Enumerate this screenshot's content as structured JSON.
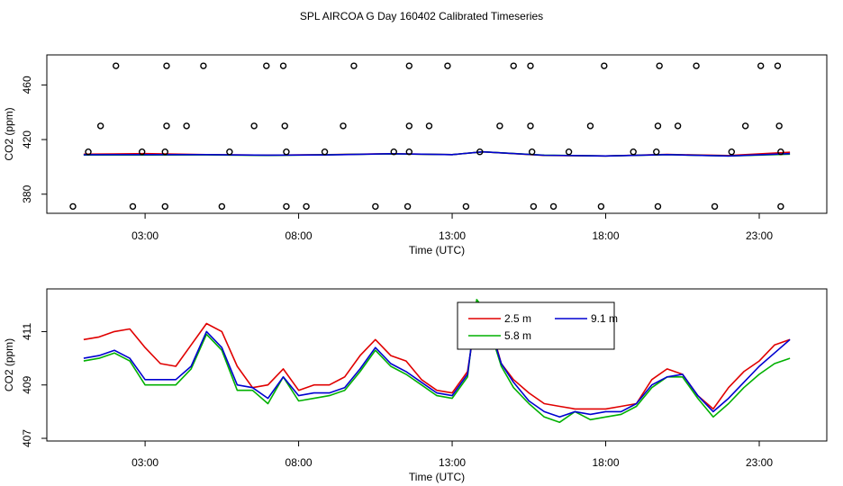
{
  "figure_title": "SPL AIRCOA G  Day 160402  Calibrated Timeseries",
  "chart_data": [
    {
      "type": "scatter+line",
      "title": "",
      "xlabel": "Time (UTC)",
      "ylabel": "CO2 (ppm)",
      "xlim": [
        -0.2,
        25.2
      ],
      "ylim": [
        366,
        482
      ],
      "xticks": [
        3,
        8,
        13,
        18,
        23
      ],
      "xtick_labels": [
        "03:00",
        "08:00",
        "13:00",
        "18:00",
        "23:00"
      ],
      "yticks": [
        380,
        420,
        460
      ],
      "ytick_labels": [
        "380",
        "420",
        "460"
      ],
      "grid": false,
      "series": [
        {
          "name": "2.5 m",
          "color": "#e00000",
          "x": [
            1,
            3,
            5,
            7,
            9,
            11,
            13,
            14,
            16,
            18,
            20,
            22,
            24
          ],
          "y": [
            409.3,
            409.7,
            409.0,
            408.6,
            409.0,
            409.6,
            409.0,
            411.0,
            408.4,
            408.0,
            409.1,
            408.3,
            410.7
          ]
        },
        {
          "name": "5.8 m",
          "color": "#00b000",
          "x": [
            1,
            3,
            5,
            7,
            9,
            11,
            13,
            14,
            16,
            18,
            20,
            22,
            24
          ],
          "y": [
            408.7,
            408.7,
            408.8,
            408.4,
            408.9,
            409.5,
            409.0,
            411.0,
            408.6,
            408.0,
            409.0,
            408.0,
            409.3
          ]
        },
        {
          "name": "9.1 m",
          "color": "#0000d0",
          "x": [
            1,
            3,
            5,
            7,
            9,
            11,
            13,
            14,
            16,
            18,
            20,
            22,
            24
          ],
          "y": [
            408.9,
            409.0,
            409.0,
            408.6,
            408.8,
            409.6,
            409.0,
            411.0,
            408.5,
            408.0,
            409.0,
            408.0,
            409.7
          ]
        }
      ],
      "markers": {
        "symbol": "open circle",
        "levels": [
          {
            "y": 474,
            "x": [
              2.05,
              3.7,
              4.9,
              6.95,
              7.5,
              9.8,
              11.6,
              12.85,
              15.0,
              15.55,
              17.95,
              19.75,
              20.95,
              23.05,
              23.6
            ]
          },
          {
            "y": 430,
            "x": [
              1.55,
              3.7,
              4.35,
              6.55,
              7.55,
              9.45,
              11.6,
              12.25,
              14.55,
              15.55,
              17.5,
              19.7,
              20.35,
              22.55,
              23.65
            ]
          },
          {
            "y": 411,
            "x": [
              1.15,
              2.9,
              3.65,
              5.75,
              7.6,
              8.85,
              11.1,
              11.6,
              13.9,
              15.6,
              16.8,
              18.9,
              19.65,
              22.1,
              23.7
            ]
          },
          {
            "y": 371,
            "x": [
              0.65,
              2.6,
              3.65,
              5.5,
              7.6,
              8.25,
              10.5,
              11.55,
              13.45,
              15.65,
              16.3,
              17.85,
              19.7,
              21.55,
              23.7
            ]
          }
        ]
      }
    },
    {
      "type": "line",
      "title": "",
      "xlabel": "Time (UTC)",
      "ylabel": "CO2 (ppm)",
      "xlim": [
        -0.2,
        25.2
      ],
      "ylim": [
        406.9,
        412.6
      ],
      "xticks": [
        3,
        8,
        13,
        18,
        23
      ],
      "xtick_labels": [
        "03:00",
        "08:00",
        "13:00",
        "18:00",
        "23:00"
      ],
      "yticks": [
        407,
        409,
        411
      ],
      "ytick_labels": [
        "407",
        "409",
        "411"
      ],
      "grid": false,
      "legend": {
        "position": "top-center",
        "entries": [
          "2.5 m",
          "9.1 m",
          "5.8 m"
        ]
      },
      "series": [
        {
          "name": "2.5 m",
          "color": "#e00000",
          "x": [
            1.0,
            1.5,
            2.0,
            2.5,
            3.0,
            3.5,
            4.0,
            4.5,
            5.0,
            5.5,
            6.0,
            6.5,
            7.0,
            7.5,
            8.0,
            8.5,
            9.0,
            9.5,
            10.0,
            10.5,
            11.0,
            11.5,
            12.0,
            12.5,
            13.0,
            13.5,
            13.8,
            14.0,
            14.3,
            14.6,
            15.0,
            15.5,
            16.0,
            16.5,
            17.0,
            17.5,
            18.0,
            18.5,
            19.0,
            19.5,
            20.0,
            20.5,
            21.0,
            21.5,
            22.0,
            22.5,
            23.0,
            23.5,
            24.0
          ],
          "y": [
            410.7,
            410.8,
            411.0,
            411.1,
            410.4,
            409.8,
            409.7,
            410.5,
            411.3,
            411.0,
            409.7,
            408.9,
            409.0,
            409.6,
            408.8,
            409.0,
            409.0,
            409.3,
            410.1,
            410.7,
            410.1,
            409.9,
            409.2,
            408.8,
            408.7,
            409.5,
            411.7,
            411.9,
            411.0,
            409.8,
            409.2,
            408.7,
            408.3,
            408.2,
            408.1,
            408.1,
            408.1,
            408.2,
            408.3,
            409.2,
            409.6,
            409.4,
            408.6,
            408.1,
            408.9,
            409.5,
            409.9,
            410.5,
            410.7
          ]
        },
        {
          "name": "5.8 m",
          "color": "#00b000",
          "x": [
            1.0,
            1.5,
            2.0,
            2.5,
            3.0,
            3.5,
            4.0,
            4.5,
            5.0,
            5.5,
            6.0,
            6.5,
            7.0,
            7.5,
            8.0,
            8.5,
            9.0,
            9.5,
            10.0,
            10.5,
            11.0,
            11.5,
            12.0,
            12.5,
            13.0,
            13.5,
            13.8,
            14.0,
            14.3,
            14.6,
            15.0,
            15.5,
            16.0,
            16.5,
            17.0,
            17.5,
            18.0,
            18.5,
            19.0,
            19.5,
            20.0,
            20.5,
            21.0,
            21.5,
            22.0,
            22.5,
            23.0,
            23.5,
            24.0
          ],
          "y": [
            409.9,
            410.0,
            410.2,
            409.9,
            409.0,
            409.0,
            409.0,
            409.6,
            410.9,
            410.3,
            408.8,
            408.8,
            408.3,
            409.3,
            408.4,
            408.5,
            408.6,
            408.8,
            409.5,
            410.3,
            409.7,
            409.4,
            409.0,
            408.6,
            408.5,
            409.3,
            412.2,
            411.9,
            410.8,
            409.7,
            408.9,
            408.3,
            407.8,
            407.6,
            408.0,
            407.7,
            407.8,
            407.9,
            408.2,
            408.9,
            409.3,
            409.3,
            408.5,
            407.8,
            408.3,
            408.9,
            409.4,
            409.8,
            410.0
          ]
        },
        {
          "name": "9.1 m",
          "color": "#0000d0",
          "x": [
            1.0,
            1.5,
            2.0,
            2.5,
            3.0,
            3.5,
            4.0,
            4.5,
            5.0,
            5.5,
            6.0,
            6.5,
            7.0,
            7.5,
            8.0,
            8.5,
            9.0,
            9.5,
            10.0,
            10.5,
            11.0,
            11.5,
            12.0,
            12.5,
            13.0,
            13.5,
            13.8,
            14.0,
            14.3,
            14.6,
            15.0,
            15.5,
            16.0,
            16.5,
            17.0,
            17.5,
            18.0,
            18.5,
            19.0,
            19.5,
            20.0,
            20.5,
            21.0,
            21.5,
            22.0,
            22.5,
            23.0,
            23.5,
            24.0
          ],
          "y": [
            410.0,
            410.1,
            410.3,
            410.0,
            409.2,
            409.2,
            409.2,
            409.7,
            411.0,
            410.4,
            409.0,
            408.9,
            408.5,
            409.3,
            408.6,
            408.7,
            408.7,
            408.9,
            409.6,
            410.4,
            409.8,
            409.5,
            409.1,
            408.7,
            408.6,
            409.4,
            412.0,
            411.9,
            410.9,
            409.8,
            409.1,
            408.4,
            408.0,
            407.8,
            408.0,
            407.9,
            408.0,
            408.0,
            408.3,
            409.0,
            409.3,
            409.4,
            408.6,
            408.0,
            408.5,
            409.1,
            409.7,
            410.2,
            410.7
          ]
        }
      ]
    }
  ]
}
